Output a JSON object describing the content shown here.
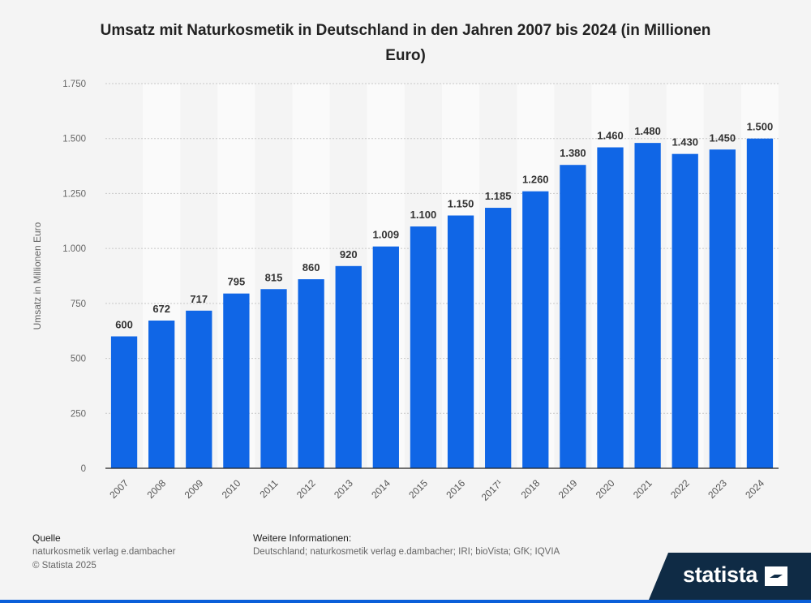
{
  "chart_data": {
    "type": "bar",
    "title": "Umsatz mit Naturkosmetik in Deutschland in den Jahren 2007 bis 2024 (in Millionen Euro)",
    "ylabel": "Umsatz in Millionen Euro",
    "xlabel": "",
    "categories": [
      "2007",
      "2008",
      "2009",
      "2010",
      "2011",
      "2012",
      "2013",
      "2014",
      "2015",
      "2016",
      "2017¹",
      "2018",
      "2019",
      "2020",
      "2021",
      "2022",
      "2023",
      "2024"
    ],
    "values": [
      600,
      672,
      717,
      795,
      815,
      860,
      920,
      1009,
      1100,
      1150,
      1185,
      1260,
      1380,
      1460,
      1480,
      1430,
      1450,
      1500
    ],
    "value_labels": [
      "600",
      "672",
      "717",
      "795",
      "815",
      "860",
      "920",
      "1.009",
      "1.100",
      "1.150",
      "1.185",
      "1.260",
      "1.380",
      "1.460",
      "1.480",
      "1.430",
      "1.450",
      "1.500"
    ],
    "ylim": [
      0,
      1750
    ],
    "yticks": [
      0,
      250,
      500,
      750,
      1000,
      1250,
      1500,
      1750
    ],
    "ytick_labels": [
      "0",
      "250",
      "500",
      "750",
      "1.000",
      "1.250",
      "1.500",
      "1.750"
    ],
    "grid": true,
    "bar_color": "#1066e6"
  },
  "footer": {
    "source_heading": "Quelle",
    "source_text": "naturkosmetik verlag e.dambacher",
    "copyright": "© Statista 2025",
    "info_heading": "Weitere Informationen:",
    "info_text": "Deutschland; naturkosmetik verlag e.dambacher; IRI; bioVista; GfK; IQVIA"
  },
  "logo": {
    "text": "statista"
  },
  "colors": {
    "accent": "#0b5fd9",
    "logo_bg": "#0f2b45"
  }
}
